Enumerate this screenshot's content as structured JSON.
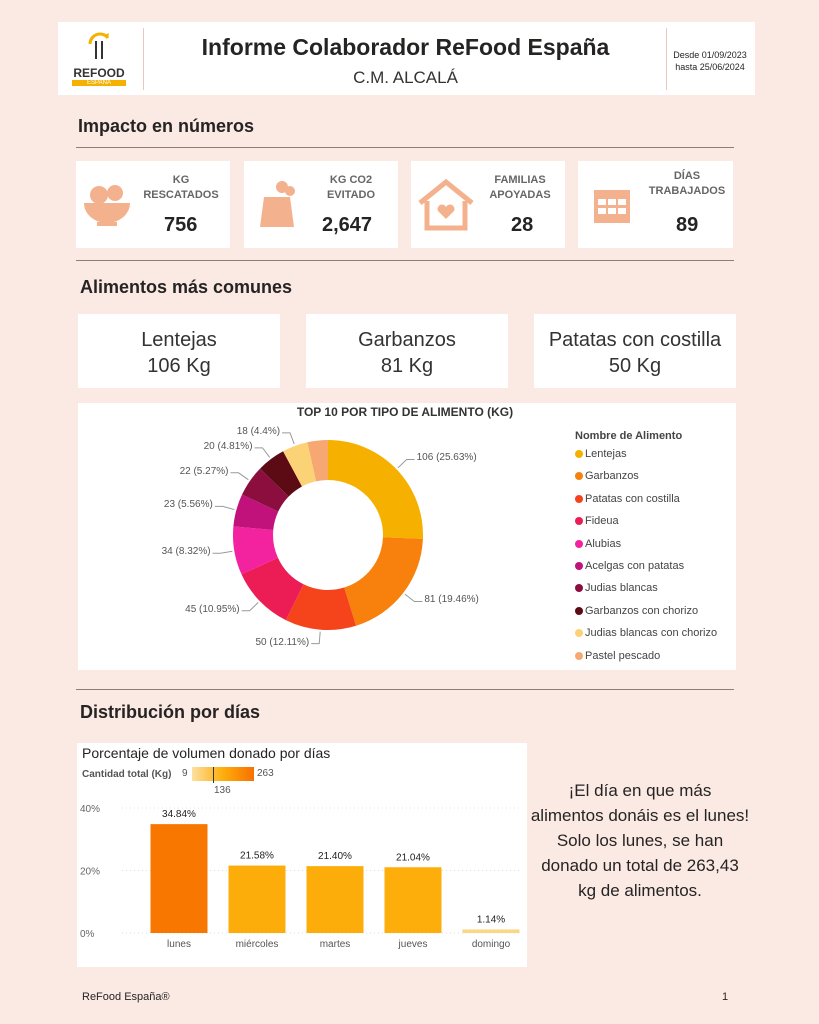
{
  "header": {
    "title": "Informe Colaborador ReFood España",
    "subtitle": "C.M. ALCALÁ",
    "date_from": "Desde 01/09/2023",
    "date_to": "hasta 25/06/2024",
    "logo_text": "REFOOD",
    "logo_sub": "ESPAÑA"
  },
  "impact": {
    "title": "Impacto en números",
    "kpis": [
      {
        "label1": "KG",
        "label2": "RESCATADOS",
        "value": "756",
        "icon": "fruit-bowl-icon"
      },
      {
        "label1": "KG CO2",
        "label2": "EVITADO",
        "value": "2,647",
        "icon": "factory-icon"
      },
      {
        "label1": "FAMILIAS",
        "label2": "APOYADAS",
        "value": "28",
        "icon": "house-heart-icon"
      },
      {
        "label1": "DÍAS",
        "label2": "TRABAJADOS",
        "value": "89",
        "icon": "calendar-icon"
      }
    ]
  },
  "foods": {
    "title": "Alimentos más comunes",
    "top": [
      {
        "name": "Lentejas",
        "kg": "106 Kg"
      },
      {
        "name": "Garbanzos",
        "kg": "81 Kg"
      },
      {
        "name": "Patatas con costilla",
        "kg": "50 Kg"
      }
    ]
  },
  "days": {
    "title": "Distribución por días",
    "message": "¡El día en que más alimentos donáis es el lunes!\nSolo los lunes, se han donado un total de 263,43 kg de alimentos."
  },
  "footer": {
    "brand": "ReFood España®",
    "page": "1"
  },
  "chart_data": [
    {
      "type": "pie",
      "title": "TOP 10 POR TIPO DE ALIMENTO (KG)",
      "legend_title": "Nombre de Alimento",
      "legend_position": "right",
      "categories": [
        "Lentejas",
        "Garbanzos",
        "Patatas con costilla",
        "Fideua",
        "Alubias",
        "Acelgas con patatas",
        "Judias blancas",
        "Garbanzos con chorizo",
        "Judias blancas con chorizo",
        "Pastel pescado"
      ],
      "values": [
        106,
        81,
        50,
        45,
        34,
        23,
        22,
        20,
        18,
        14.4
      ],
      "labels": [
        "106 (25.63%)",
        "81 (19.46%)",
        "50 (12.11%)",
        "45 (10.95%)",
        "34 (8.32%)",
        "23 (5.56%)",
        "22 (5.27%)",
        "20 (4.81%)",
        "18 (4.4%)",
        ""
      ],
      "colors": [
        "#f6b100",
        "#f8800d",
        "#f5441b",
        "#ec1d54",
        "#f3229f",
        "#c0127a",
        "#8b0e3f",
        "#5c0a14",
        "#fcd277",
        "#f7a872"
      ]
    },
    {
      "type": "bar",
      "title": "Porcentaje de volumen donado por días",
      "color_legend": {
        "label": "Cantidad total (Kg)",
        "min": "9",
        "mid": "136",
        "max": "263"
      },
      "categories": [
        "lunes",
        "miércoles",
        "martes",
        "jueves",
        "domingo"
      ],
      "values": [
        34.84,
        21.58,
        21.4,
        21.04,
        1.14
      ],
      "labels": [
        "34.84%",
        "21.58%",
        "21.40%",
        "21.04%",
        "1.14%"
      ],
      "colors": [
        "#f87700",
        "#fdad0a",
        "#fdad0a",
        "#fdae0b",
        "#fcd684"
      ],
      "ylim": [
        0,
        40
      ],
      "yticks": [
        "0%",
        "20%",
        "40%"
      ],
      "grid": true
    }
  ]
}
